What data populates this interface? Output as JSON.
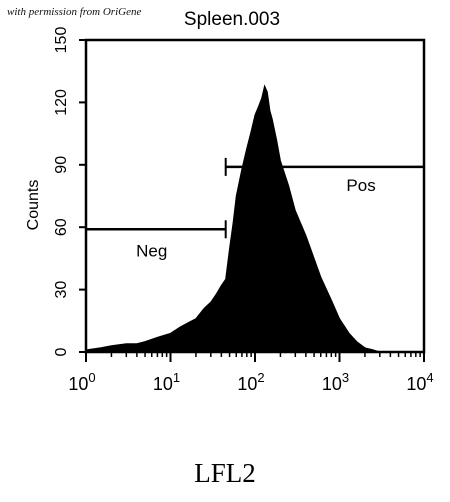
{
  "credit": "with permission from OriGene",
  "caption": "LFL2",
  "chart_data": {
    "type": "area",
    "title": "Spleen.003",
    "xlabel": "",
    "ylabel": "Counts",
    "xscale": "log",
    "xlim": [
      1,
      10000
    ],
    "ylim": [
      0,
      150
    ],
    "xticks": [
      {
        "value": 1,
        "base": "10",
        "exp": "0"
      },
      {
        "value": 10,
        "base": "10",
        "exp": "1"
      },
      {
        "value": 100,
        "base": "10",
        "exp": "2"
      },
      {
        "value": 1000,
        "base": "10",
        "exp": "3"
      },
      {
        "value": 10000,
        "base": "10",
        "exp": "4"
      }
    ],
    "yticks": [
      0,
      30,
      60,
      90,
      120,
      150
    ],
    "series": [
      {
        "x": [
          1,
          1.5,
          2,
          3,
          4,
          5,
          7,
          10,
          13,
          16,
          20,
          25,
          30,
          35,
          40,
          45,
          50,
          55,
          60,
          70,
          80,
          90,
          100,
          110,
          120,
          130,
          140,
          150,
          160,
          180,
          200,
          250,
          300,
          400,
          500,
          600,
          800,
          1000,
          1300,
          1600,
          2000,
          2500,
          3000
        ],
        "y": [
          1,
          2,
          3,
          4,
          4,
          5,
          7,
          9,
          12,
          14,
          16,
          21,
          24,
          28,
          32,
          35,
          50,
          62,
          75,
          88,
          98,
          106,
          114,
          118,
          122,
          128,
          125,
          116,
          112,
          102,
          92,
          80,
          68,
          56,
          45,
          36,
          25,
          16,
          9,
          5,
          2,
          1,
          0
        ]
      }
    ],
    "gates": [
      {
        "label": "Neg",
        "x": [
          1,
          45
        ],
        "y": 59
      },
      {
        "label": "Pos",
        "x": [
          45,
          10000
        ],
        "y": 89
      }
    ]
  }
}
